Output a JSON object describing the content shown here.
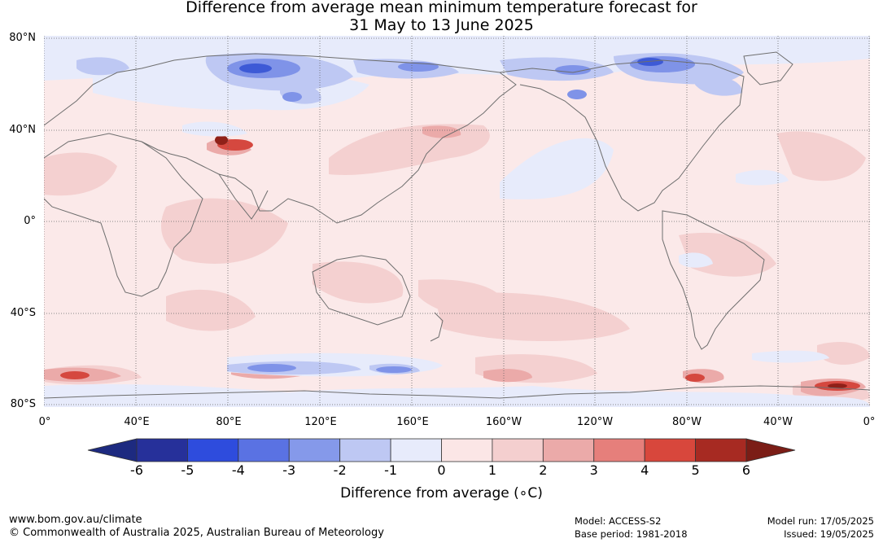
{
  "title": {
    "line1": "Difference from average mean minimum temperature forecast for",
    "line2": "31 May to 13 June 2025"
  },
  "lat_labels": [
    "80°N",
    "40°N",
    "0°",
    "40°S",
    "80°S"
  ],
  "lon_labels": [
    "0°",
    "40°E",
    "80°E",
    "120°E",
    "160°E",
    "160°W",
    "120°W",
    "80°W",
    "40°W",
    "0°"
  ],
  "colorbar": {
    "ticks": [
      "-6",
      "-5",
      "-4",
      "-3",
      "-2",
      "-1",
      "0",
      "1",
      "2",
      "3",
      "4",
      "5",
      "6"
    ],
    "colors": [
      "#26309a",
      "#2e4cdd",
      "#5a72e3",
      "#8599ea",
      "#bec8f3",
      "#e7ebfb",
      "#fbe6e6",
      "#f4cfcf",
      "#ebaaa9",
      "#e67f7b",
      "#d8473c",
      "#a72a22"
    ],
    "low_extend_color": "#1d2a80",
    "high_extend_color": "#7b1d16",
    "label": "Difference from average (∘C)"
  },
  "map_colors": {
    "ocean_base": "#fbe9e9",
    "warm_light": "#f4d0d0",
    "warm_mid": "#ebaaa9",
    "warm_strong": "#d5483f",
    "warm_extreme": "#8f2018",
    "cool_light": "#e7ebfb",
    "cool_mid": "#bec8f3",
    "cool_strong": "#7f93e8",
    "cool_deep": "#3d5ad6",
    "coast": "#6e6e6e",
    "grid": "#666666"
  },
  "footer": {
    "url": "www.bom.gov.au/climate",
    "copyright": "© Commonwealth of Australia 2025, Australian Bureau of Meteorology",
    "model": "Model: ACCESS-S2",
    "base_period": "Base period: 1981-2018",
    "model_run": "Model run: 17/05/2025",
    "issued": "Issued: 19/05/2025"
  }
}
